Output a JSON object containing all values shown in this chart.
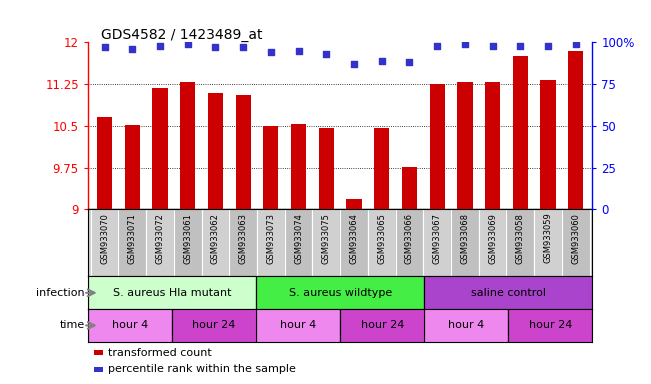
{
  "title": "GDS4582 / 1423489_at",
  "samples": [
    "GSM933070",
    "GSM933071",
    "GSM933072",
    "GSM933061",
    "GSM933062",
    "GSM933063",
    "GSM933073",
    "GSM933074",
    "GSM933075",
    "GSM933064",
    "GSM933065",
    "GSM933066",
    "GSM933067",
    "GSM933068",
    "GSM933069",
    "GSM933058",
    "GSM933059",
    "GSM933060"
  ],
  "bar_values": [
    10.65,
    10.52,
    11.18,
    11.28,
    11.09,
    11.06,
    10.5,
    10.53,
    10.46,
    9.18,
    10.46,
    9.76,
    11.25,
    11.28,
    11.28,
    11.75,
    11.32,
    11.85
  ],
  "dot_values": [
    97,
    96,
    98,
    99,
    97,
    97,
    94,
    95,
    93,
    87,
    89,
    88,
    98,
    99,
    98,
    98,
    98,
    99
  ],
  "ylim": [
    9,
    12
  ],
  "yticks": [
    9,
    9.75,
    10.5,
    11.25,
    12
  ],
  "right_yticks": [
    0,
    25,
    50,
    75,
    100
  ],
  "bar_color": "#cc0000",
  "dot_color": "#3333cc",
  "infection_groups": [
    {
      "label": "S. aureus Hla mutant",
      "start": 0,
      "end": 6,
      "color": "#ccffcc"
    },
    {
      "label": "S. aureus wildtype",
      "start": 6,
      "end": 12,
      "color": "#44ee44"
    },
    {
      "label": "saline control",
      "start": 12,
      "end": 18,
      "color": "#aa44cc"
    }
  ],
  "time_groups": [
    {
      "label": "hour 4",
      "start": 0,
      "end": 3,
      "color": "#ee88ee"
    },
    {
      "label": "hour 24",
      "start": 3,
      "end": 6,
      "color": "#cc44cc"
    },
    {
      "label": "hour 4",
      "start": 6,
      "end": 9,
      "color": "#ee88ee"
    },
    {
      "label": "hour 24",
      "start": 9,
      "end": 12,
      "color": "#cc44cc"
    },
    {
      "label": "hour 4",
      "start": 12,
      "end": 15,
      "color": "#ee88ee"
    },
    {
      "label": "hour 24",
      "start": 15,
      "end": 18,
      "color": "#cc44cc"
    }
  ],
  "legend_items": [
    {
      "label": "transformed count",
      "color": "#cc0000"
    },
    {
      "label": "percentile rank within the sample",
      "color": "#3333cc"
    }
  ],
  "gsm_bg_even": "#d0d0d0",
  "gsm_bg_odd": "#c0c0c0"
}
